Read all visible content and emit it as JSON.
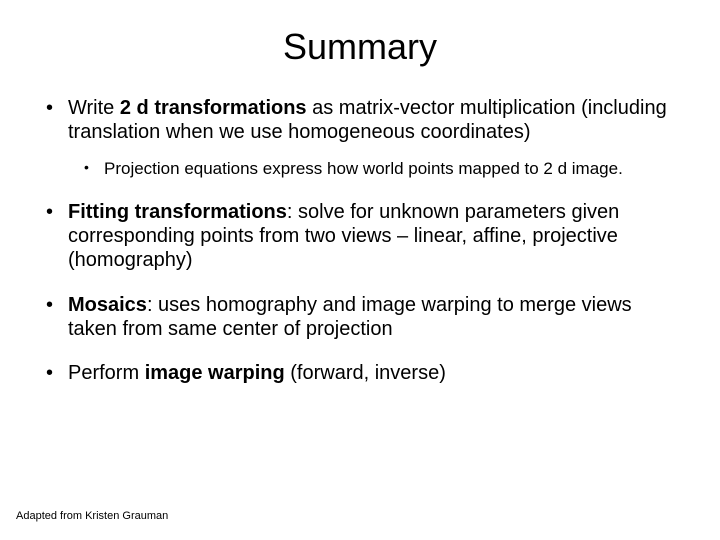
{
  "title": "Summary",
  "bullets": [
    {
      "pre": "Write ",
      "bold": "2 d transformations",
      "post": " as matrix-vector multiplication (including translation when we use homogeneous coordinates)",
      "sub": "Projection equations express how world points mapped to 2 d image."
    },
    {
      "pre": "",
      "bold": "Fitting transformations",
      "post": ": solve for unknown parameters given corresponding points from two views – linear, affine, projective (homography)"
    },
    {
      "pre": "",
      "bold": "Mosaics",
      "post": ": uses homography and image warping to merge views taken from same center of projection"
    },
    {
      "pre": "Perform ",
      "bold": "image warping",
      "post": " (forward, inverse)"
    }
  ],
  "footer": "Adapted from Kristen Grauman"
}
